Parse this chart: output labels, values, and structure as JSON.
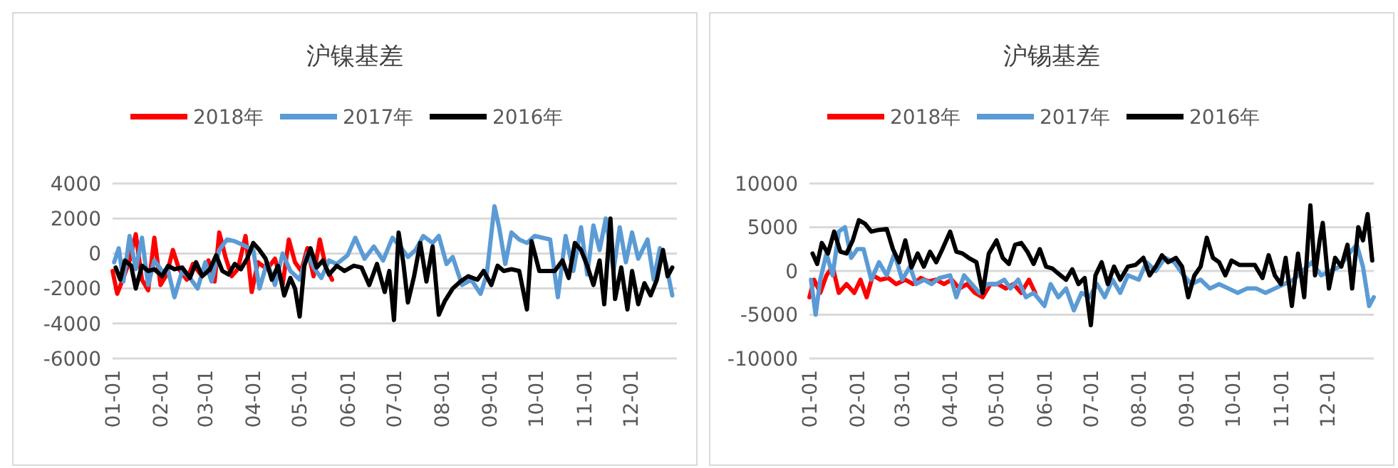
{
  "chart_data": [
    {
      "type": "line",
      "title": "沪镍基差",
      "legend": "top",
      "grid": "y",
      "marker": "none",
      "line_style": "solid",
      "xlim": [
        "--01-01",
        "--12-31"
      ],
      "ylim": [
        -6000,
        4000
      ],
      "yticks": [
        -6000,
        -4000,
        -2000,
        0,
        2000,
        4000
      ],
      "xticks": [
        {
          "value": "--01-01",
          "label": "01-01"
        },
        {
          "value": "--02-01",
          "label": "02-01"
        },
        {
          "value": "--03-01",
          "label": "03-01"
        },
        {
          "value": "--04-01",
          "label": "04-01"
        },
        {
          "value": "--05-01",
          "label": "05-01"
        },
        {
          "value": "--06-01",
          "label": "06-01"
        },
        {
          "value": "--07-01",
          "label": "07-01"
        },
        {
          "value": "--08-01",
          "label": "08-01"
        },
        {
          "value": "--09-01",
          "label": "09-01"
        },
        {
          "value": "--10-01",
          "label": "10-01"
        },
        {
          "value": "--11-01",
          "label": "11-01"
        },
        {
          "value": "--12-01",
          "label": "12-01"
        }
      ],
      "series": [
        {
          "name": "2018年",
          "color": "#ff0000",
          "x": [
            "--01-01",
            "--01-04",
            "--01-08",
            "--01-12",
            "--01-16",
            "--01-20",
            "--01-24",
            "--01-28",
            "--02-01",
            "--02-05",
            "--02-09",
            "--02-13",
            "--02-18",
            "--02-22",
            "--02-27",
            "--03-03",
            "--03-07",
            "--03-10",
            "--03-14",
            "--03-18",
            "--03-22",
            "--03-27",
            "--03-31",
            "--04-04",
            "--04-10",
            "--04-15",
            "--04-20",
            "--04-24",
            "--04-28",
            "--05-02",
            "--05-06",
            "--05-10",
            "--05-14",
            "--05-18",
            "--05-22"
          ],
          "values": [
            -1000,
            -2300,
            -1400,
            -400,
            1100,
            -1500,
            -2100,
            900,
            -1800,
            -1200,
            200,
            -900,
            -1500,
            -600,
            -1200,
            -400,
            -1600,
            1200,
            -200,
            -1300,
            -900,
            1000,
            -2200,
            -500,
            -900,
            -300,
            -1800,
            800,
            -500,
            -1000,
            300,
            -1300,
            800,
            -800,
            -1500
          ]
        },
        {
          "name": "2017年",
          "color": "#5b9bd5",
          "x": [
            "--01-02",
            "--01-05",
            "--01-08",
            "--01-12",
            "--01-16",
            "--01-20",
            "--01-24",
            "--01-28",
            "--02-02",
            "--02-06",
            "--02-10",
            "--02-15",
            "--02-20",
            "--02-25",
            "--03-01",
            "--03-05",
            "--03-10",
            "--03-15",
            "--03-20",
            "--03-25",
            "--04-01",
            "--04-05",
            "--04-10",
            "--04-15",
            "--04-20",
            "--04-25",
            "--05-01",
            "--05-06",
            "--05-10",
            "--05-15",
            "--05-20",
            "--05-25",
            "--06-01",
            "--06-06",
            "--06-12",
            "--06-18",
            "--06-24",
            "--06-30",
            "--07-05",
            "--07-10",
            "--07-15",
            "--07-20",
            "--07-26",
            "--07-30",
            "--08-04",
            "--08-08",
            "--08-14",
            "--08-20",
            "--08-26",
            "--08-30",
            "--09-04",
            "--09-07",
            "--09-11",
            "--09-15",
            "--09-20",
            "--09-25",
            "--09-30",
            "--10-05",
            "--10-10",
            "--10-15",
            "--10-20",
            "--10-25",
            "--10-30",
            "--11-03",
            "--11-07",
            "--11-11",
            "--11-15",
            "--11-20",
            "--11-24",
            "--11-28",
            "--12-02",
            "--12-06",
            "--12-12",
            "--12-16",
            "--12-20",
            "--12-24",
            "--12-28"
          ],
          "values": [
            -500,
            300,
            -1600,
            1000,
            -900,
            900,
            -1800,
            -400,
            -1000,
            -1000,
            -2500,
            -1000,
            -1400,
            -2000,
            -500,
            -1600,
            200,
            800,
            700,
            500,
            200,
            -2000,
            -500,
            -1800,
            0,
            -1000,
            -1500,
            0,
            -800,
            -1400,
            -400,
            -600,
            -100,
            900,
            -300,
            400,
            -400,
            900,
            400,
            -200,
            200,
            1000,
            600,
            1000,
            -600,
            -200,
            -1800,
            -1500,
            -2300,
            -1200,
            2700,
            1500,
            -600,
            1200,
            800,
            600,
            1000,
            900,
            800,
            -2500,
            1000,
            -1000,
            1500,
            -1200,
            1600,
            200,
            2000,
            -1000,
            1500,
            -500,
            1200,
            -300,
            800,
            -1500,
            300,
            -600,
            -2400
          ]
        },
        {
          "name": "2016年",
          "color": "#000000",
          "x": [
            "--01-03",
            "--01-06",
            "--01-09",
            "--01-13",
            "--01-16",
            "--01-20",
            "--01-24",
            "--01-28",
            "--02-02",
            "--02-06",
            "--02-10",
            "--02-15",
            "--02-20",
            "--02-24",
            "--02-28",
            "--03-04",
            "--03-08",
            "--03-12",
            "--03-16",
            "--03-20",
            "--03-24",
            "--03-28",
            "--04-01",
            "--04-05",
            "--04-09",
            "--04-13",
            "--04-17",
            "--04-21",
            "--04-25",
            "--04-28",
            "--05-01",
            "--05-04",
            "--05-08",
            "--05-12",
            "--05-16",
            "--05-20",
            "--05-25",
            "--05-30",
            "--06-05",
            "--06-10",
            "--06-15",
            "--06-20",
            "--06-25",
            "--06-28",
            "--07-01",
            "--07-04",
            "--07-07",
            "--07-10",
            "--07-14",
            "--07-18",
            "--07-22",
            "--07-26",
            "--07-30",
            "--08-03",
            "--08-08",
            "--08-13",
            "--08-18",
            "--08-24",
            "--08-28",
            "--09-02",
            "--09-06",
            "--09-10",
            "--09-15",
            "--09-20",
            "--09-25",
            "--09-28",
            "--10-03",
            "--10-08",
            "--10-13",
            "--10-18",
            "--10-22",
            "--10-26",
            "--10-30",
            "--11-03",
            "--11-07",
            "--11-11",
            "--11-14",
            "--11-18",
            "--11-21",
            "--11-25",
            "--11-29",
            "--12-02",
            "--12-06",
            "--12-10",
            "--12-14",
            "--12-18",
            "--12-22",
            "--12-25",
            "--12-28"
          ],
          "values": [
            -800,
            -1500,
            -400,
            -700,
            -2000,
            -700,
            -1000,
            -900,
            -1300,
            -700,
            -900,
            -800,
            -1400,
            -500,
            -1300,
            -900,
            -100,
            -1000,
            -1200,
            -600,
            -900,
            -300,
            600,
            200,
            -300,
            -1500,
            -700,
            -2400,
            -1400,
            -2000,
            -3600,
            -700,
            300,
            -800,
            -400,
            -1200,
            -700,
            -1000,
            -700,
            -800,
            -1800,
            -600,
            -2200,
            -1000,
            -3800,
            1200,
            -500,
            -2800,
            -1300,
            600,
            -1600,
            400,
            -3500,
            -2700,
            -2000,
            -1600,
            -1300,
            -1500,
            -1000,
            -1800,
            -700,
            -1000,
            -900,
            -1000,
            -3200,
            700,
            -1000,
            -1000,
            -1000,
            -400,
            -1400,
            600,
            200,
            -700,
            -1800,
            -400,
            -2900,
            2000,
            -2600,
            -800,
            -3200,
            -1000,
            -2900,
            -1700,
            -2400,
            -1500,
            200,
            -1300,
            -800
          ]
        }
      ]
    },
    {
      "type": "line",
      "title": "沪锡基差",
      "legend": "top",
      "grid": "y",
      "marker": "none",
      "line_style": "solid",
      "xlim": [
        "--01-01",
        "--12-31"
      ],
      "ylim": [
        -10000,
        10000
      ],
      "yticks": [
        -10000,
        -5000,
        0,
        5000,
        10000
      ],
      "xticks": [
        {
          "value": "--01-01",
          "label": "01-01"
        },
        {
          "value": "--02-01",
          "label": "02-01"
        },
        {
          "value": "--03-01",
          "label": "03-01"
        },
        {
          "value": "--04-01",
          "label": "04-01"
        },
        {
          "value": "--05-01",
          "label": "05-01"
        },
        {
          "value": "--06-01",
          "label": "06-01"
        },
        {
          "value": "--07-01",
          "label": "07-01"
        },
        {
          "value": "--08-01",
          "label": "08-01"
        },
        {
          "value": "--09-01",
          "label": "09-01"
        },
        {
          "value": "--10-01",
          "label": "10-01"
        },
        {
          "value": "--11-01",
          "label": "11-01"
        },
        {
          "value": "--12-01",
          "label": "12-01"
        }
      ],
      "series": [
        {
          "name": "2018年",
          "color": "#ff0000",
          "x": [
            "--01-01",
            "--01-04",
            "--01-08",
            "--01-12",
            "--01-16",
            "--01-20",
            "--01-25",
            "--01-30",
            "--02-03",
            "--02-07",
            "--02-11",
            "--02-16",
            "--02-21",
            "--02-26",
            "--03-03",
            "--03-08",
            "--03-13",
            "--03-18",
            "--03-23",
            "--03-28",
            "--04-02",
            "--04-07",
            "--04-12",
            "--04-17",
            "--04-22",
            "--04-27",
            "--05-02",
            "--05-07",
            "--05-12",
            "--05-17",
            "--05-22",
            "--05-26"
          ],
          "values": [
            -3000,
            -1000,
            -2500,
            -500,
            500,
            -2500,
            -1500,
            -2500,
            -1000,
            -3000,
            -500,
            -1000,
            -800,
            -1500,
            -1000,
            -1500,
            -800,
            -1200,
            -1000,
            -1500,
            -1000,
            -2000,
            -1500,
            -2500,
            -3000,
            -1500,
            -1500,
            -2000,
            -1500,
            -2500,
            -1000,
            -2500
          ]
        },
        {
          "name": "2017年",
          "color": "#5b9bd5",
          "x": [
            "--01-02",
            "--01-05",
            "--01-08",
            "--01-12",
            "--01-16",
            "--01-20",
            "--01-24",
            "--01-28",
            "--02-01",
            "--02-05",
            "--02-10",
            "--02-15",
            "--02-20",
            "--02-25",
            "--03-01",
            "--03-06",
            "--03-10",
            "--03-15",
            "--03-20",
            "--03-25",
            "--04-01",
            "--04-05",
            "--04-10",
            "--04-15",
            "--04-20",
            "--04-25",
            "--05-01",
            "--05-06",
            "--05-10",
            "--05-15",
            "--05-20",
            "--05-25",
            "--06-01",
            "--06-05",
            "--06-10",
            "--06-15",
            "--06-20",
            "--06-25",
            "--06-30",
            "--07-05",
            "--07-10",
            "--07-15",
            "--07-20",
            "--07-25",
            "--08-01",
            "--08-06",
            "--08-12",
            "--08-18",
            "--08-24",
            "--08-30",
            "--09-04",
            "--09-10",
            "--09-16",
            "--09-22",
            "--09-28",
            "--10-04",
            "--10-10",
            "--10-16",
            "--10-22",
            "--10-28",
            "--11-03",
            "--11-09",
            "--11-15",
            "--11-21",
            "--11-27",
            "--12-03",
            "--12-09",
            "--12-15",
            "--12-20",
            "--12-24",
            "--12-28",
            "--12-31"
          ],
          "values": [
            -1000,
            -5000,
            -1000,
            2000,
            -500,
            4500,
            5000,
            1500,
            2500,
            2500,
            -1000,
            1000,
            -500,
            2000,
            -1000,
            500,
            -1500,
            -1000,
            -1500,
            -800,
            -500,
            -3000,
            -500,
            -1500,
            -2500,
            -1500,
            -1500,
            -1000,
            -2000,
            -1000,
            -3000,
            -2500,
            -4000,
            -1500,
            -3000,
            -2000,
            -4500,
            -2500,
            -3000,
            -1500,
            -3000,
            -1000,
            -2500,
            -500,
            -1000,
            1000,
            0,
            1500,
            1000,
            -500,
            -1500,
            -1000,
            -2000,
            -1500,
            -2000,
            -2500,
            -2000,
            -2000,
            -2500,
            -2000,
            -1500,
            -1000,
            0,
            1000,
            -500,
            0,
            500,
            2000,
            3000,
            500,
            -4000,
            -3000
          ]
        },
        {
          "name": "2016年",
          "color": "#000000",
          "x": [
            "--01-03",
            "--01-06",
            "--01-09",
            "--01-13",
            "--01-17",
            "--01-21",
            "--01-25",
            "--01-29",
            "--02-02",
            "--02-06",
            "--02-10",
            "--02-15",
            "--02-20",
            "--02-24",
            "--02-28",
            "--03-03",
            "--03-07",
            "--03-11",
            "--03-15",
            "--03-19",
            "--03-23",
            "--03-27",
            "--04-01",
            "--04-05",
            "--04-09",
            "--04-13",
            "--04-18",
            "--04-22",
            "--04-26",
            "--05-01",
            "--05-05",
            "--05-09",
            "--05-13",
            "--05-17",
            "--05-21",
            "--05-25",
            "--05-29",
            "--06-02",
            "--06-06",
            "--06-10",
            "--06-15",
            "--06-19",
            "--06-23",
            "--06-27",
            "--07-01",
            "--07-04",
            "--07-08",
            "--07-12",
            "--07-16",
            "--07-20",
            "--07-25",
            "--07-30",
            "--08-04",
            "--08-08",
            "--08-12",
            "--08-16",
            "--08-20",
            "--08-25",
            "--08-29",
            "--09-02",
            "--09-06",
            "--09-10",
            "--09-14",
            "--09-18",
            "--09-22",
            "--09-26",
            "--09-30",
            "--10-05",
            "--10-10",
            "--10-15",
            "--10-20",
            "--10-24",
            "--10-28",
            "--11-01",
            "--11-04",
            "--11-08",
            "--11-12",
            "--11-16",
            "--11-20",
            "--11-23",
            "--11-26",
            "--11-28",
            "--12-02",
            "--12-06",
            "--12-10",
            "--12-14",
            "--12-17",
            "--12-21",
            "--12-24",
            "--12-27",
            "--12-30"
          ],
          "values": [
            2000,
            800,
            3200,
            2000,
            4500,
            2200,
            2000,
            3500,
            5800,
            5400,
            4500,
            4700,
            4800,
            2500,
            1000,
            3500,
            400,
            2000,
            500,
            2200,
            1000,
            2500,
            4500,
            2200,
            2000,
            1500,
            1000,
            -2500,
            2000,
            3500,
            1500,
            800,
            3000,
            3200,
            2200,
            800,
            2500,
            500,
            300,
            -300,
            -1000,
            200,
            -1500,
            -800,
            -6200,
            -500,
            1000,
            -1500,
            500,
            -1000,
            500,
            700,
            1500,
            -500,
            500,
            1800,
            1000,
            1500,
            500,
            -3000,
            -500,
            500,
            3800,
            1500,
            1000,
            -500,
            1200,
            700,
            700,
            700,
            -800,
            1800,
            -500,
            -1500,
            1500,
            -4000,
            2000,
            -3000,
            7500,
            -500,
            3500,
            5500,
            -2000,
            1500,
            500,
            3000,
            -2000,
            5000,
            3500,
            6500,
            1200
          ]
        }
      ]
    }
  ]
}
